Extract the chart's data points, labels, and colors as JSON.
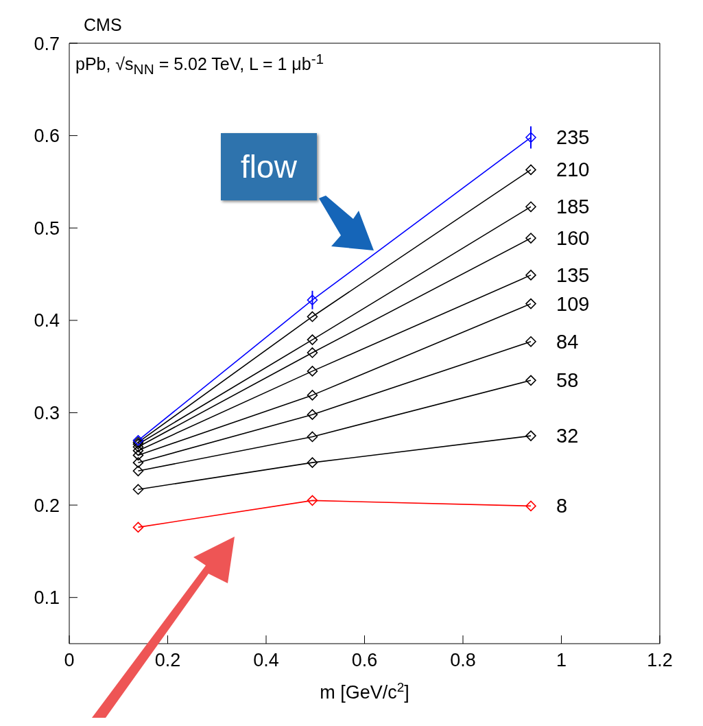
{
  "chart_data": {
    "type": "line",
    "title": "CMS",
    "xlabel": "m [GeV/c$^{2}$]",
    "x": [
      0.14,
      0.494,
      0.938
    ],
    "series": [
      {
        "name": "8",
        "color": "#ff0000",
        "values": [
          0.176,
          0.205,
          0.199
        ]
      },
      {
        "name": "32",
        "color": "#000000",
        "values": [
          0.217,
          0.246,
          0.275
        ]
      },
      {
        "name": "58",
        "color": "#000000",
        "values": [
          0.237,
          0.274,
          0.335
        ]
      },
      {
        "name": "84",
        "color": "#000000",
        "values": [
          0.246,
          0.298,
          0.377
        ]
      },
      {
        "name": "109",
        "color": "#000000",
        "values": [
          0.254,
          0.319,
          0.418
        ]
      },
      {
        "name": "135",
        "color": "#000000",
        "values": [
          0.259,
          0.345,
          0.449
        ]
      },
      {
        "name": "160",
        "color": "#000000",
        "values": [
          0.263,
          0.365,
          0.489
        ]
      },
      {
        "name": "185",
        "color": "#000000",
        "values": [
          0.266,
          0.379,
          0.523
        ]
      },
      {
        "name": "210",
        "color": "#000000",
        "values": [
          0.268,
          0.404,
          0.563
        ]
      },
      {
        "name": "235",
        "color": "#0000ff",
        "values": [
          0.27,
          0.422,
          0.598
        ],
        "errors": [
          null,
          0.01,
          0.012
        ]
      }
    ],
    "xlim": [
      0,
      1.2
    ],
    "xticks": [
      0,
      0.2,
      0.4,
      0.6,
      0.8,
      1,
      1.2
    ],
    "ylim": [
      0.05,
      0.7
    ],
    "yticks": [
      0.1,
      0.2,
      0.3,
      0.4,
      0.5,
      0.6,
      0.7
    ],
    "marker": "diamond",
    "annotations": [
      "pPb, √s$_{NN}$ = 5.02 TeV, L = 1 μb$^{-1}$",
      "flow"
    ]
  }
}
